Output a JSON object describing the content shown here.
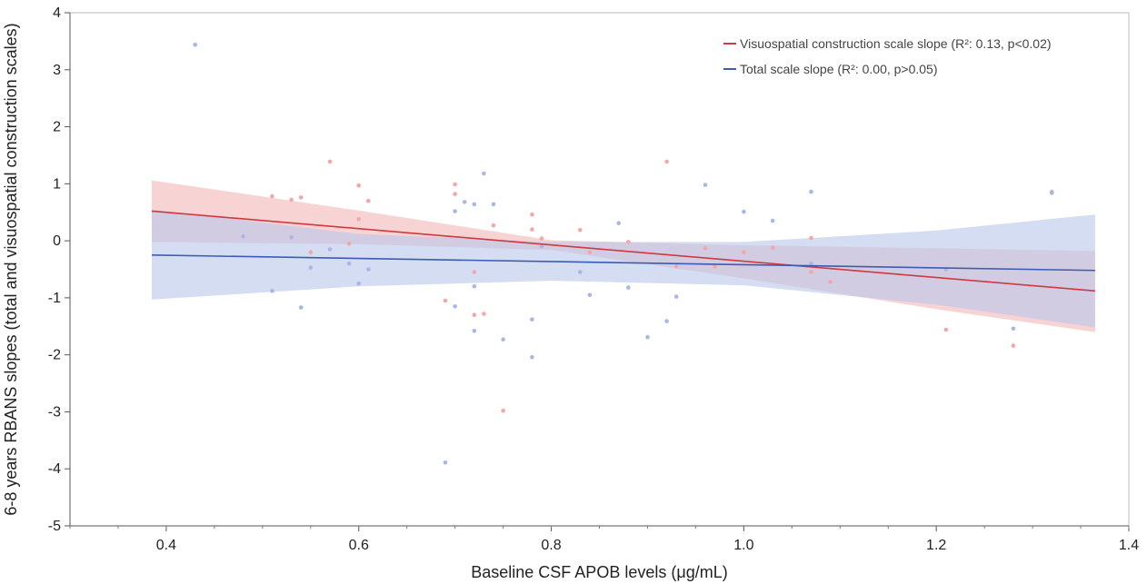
{
  "chart_data": {
    "type": "scatter",
    "xlabel": "Baseline CSF APOB levels (μg/mL)",
    "ylabel": "6-8 years RBANS slopes (total and visuospatial construction scales)",
    "xlim": [
      0.3,
      1.4
    ],
    "ylim": [
      -5,
      4
    ],
    "xticks": [
      0.4,
      0.6,
      0.8,
      1.0,
      1.2,
      1.4
    ],
    "xtick_labels": [
      "0.4",
      "0.6",
      "0.8",
      "1.0",
      "1.2",
      "1.4"
    ],
    "yticks": [
      -5,
      -4,
      -3,
      -2,
      -1,
      0,
      1,
      2,
      3,
      4
    ],
    "ytick_labels": [
      "-5",
      "-4",
      "-3",
      "-2",
      "-1",
      "0",
      "1",
      "2",
      "3",
      "4"
    ],
    "grid": false,
    "legend_position": "top-right",
    "series": [
      {
        "name": "Visuospatial construction scale slope (R²: 0.13, p<0.02)",
        "color": "#d0393f",
        "band_color": "#f4b8b8",
        "line": {
          "x": [
            0.385,
            1.365
          ],
          "y": [
            0.52,
            -0.88
          ]
        },
        "band": {
          "x": [
            0.385,
            0.6,
            0.8,
            1.0,
            1.2,
            1.365
          ],
          "upper": [
            1.06,
            0.53,
            0.01,
            -0.08,
            -0.13,
            -0.18
          ],
          "lower": [
            -0.02,
            -0.06,
            -0.16,
            -0.66,
            -1.2,
            -1.6
          ]
        },
        "points": [
          [
            0.43,
            3.44
          ],
          [
            0.51,
            0.78
          ],
          [
            0.53,
            0.72
          ],
          [
            0.54,
            0.76
          ],
          [
            0.57,
            1.39
          ],
          [
            0.6,
            0.97
          ],
          [
            0.61,
            0.7
          ],
          [
            0.6,
            0.38
          ],
          [
            0.59,
            -0.05
          ],
          [
            0.55,
            -0.2
          ],
          [
            0.69,
            -1.05
          ],
          [
            0.7,
            0.99
          ],
          [
            0.7,
            0.82
          ],
          [
            0.72,
            -0.55
          ],
          [
            0.72,
            -1.3
          ],
          [
            0.73,
            -1.28
          ],
          [
            0.74,
            0.27
          ],
          [
            0.75,
            -2.98
          ],
          [
            0.78,
            0.46
          ],
          [
            0.78,
            0.2
          ],
          [
            0.79,
            0.04
          ],
          [
            0.83,
            0.19
          ],
          [
            0.84,
            -0.2
          ],
          [
            0.88,
            -0.02
          ],
          [
            0.92,
            1.39
          ],
          [
            0.93,
            -0.45
          ],
          [
            0.96,
            -0.13
          ],
          [
            0.97,
            -0.45
          ],
          [
            1.0,
            -0.2
          ],
          [
            1.03,
            -0.12
          ],
          [
            1.07,
            0.05
          ],
          [
            1.07,
            -0.55
          ],
          [
            1.09,
            -0.72
          ],
          [
            1.21,
            -1.56
          ],
          [
            1.28,
            -1.84
          ],
          [
            1.32,
            0.86
          ]
        ]
      },
      {
        "name": "Total scale slope (R²: 0.00, p>0.05)",
        "color": "#3a5cb5",
        "band_color": "#b9c8ea",
        "line": {
          "x": [
            0.385,
            1.365
          ],
          "y": [
            -0.25,
            -0.52
          ]
        },
        "band": {
          "x": [
            0.385,
            0.6,
            0.8,
            1.0,
            1.2,
            1.365
          ],
          "upper": [
            0.55,
            0.12,
            -0.02,
            -0.02,
            0.18,
            0.46
          ],
          "lower": [
            -1.03,
            -0.8,
            -0.7,
            -0.78,
            -1.12,
            -1.52
          ]
        },
        "points": [
          [
            0.43,
            3.44
          ],
          [
            0.48,
            0.08
          ],
          [
            0.51,
            -0.88
          ],
          [
            0.53,
            0.06
          ],
          [
            0.54,
            -1.17
          ],
          [
            0.55,
            -0.47
          ],
          [
            0.57,
            -0.15
          ],
          [
            0.59,
            -0.4
          ],
          [
            0.6,
            -0.75
          ],
          [
            0.61,
            -0.5
          ],
          [
            0.69,
            -3.89
          ],
          [
            0.7,
            0.52
          ],
          [
            0.7,
            -1.15
          ],
          [
            0.71,
            0.68
          ],
          [
            0.72,
            0.64
          ],
          [
            0.72,
            -0.8
          ],
          [
            0.72,
            -1.58
          ],
          [
            0.73,
            1.18
          ],
          [
            0.74,
            0.64
          ],
          [
            0.75,
            -1.73
          ],
          [
            0.78,
            -1.38
          ],
          [
            0.78,
            -2.04
          ],
          [
            0.79,
            -0.1
          ],
          [
            0.83,
            -0.55
          ],
          [
            0.84,
            -0.95
          ],
          [
            0.87,
            0.31
          ],
          [
            0.88,
            -0.82
          ],
          [
            0.9,
            -1.69
          ],
          [
            0.92,
            -1.41
          ],
          [
            0.93,
            -0.98
          ],
          [
            0.96,
            0.98
          ],
          [
            1.0,
            0.51
          ],
          [
            1.03,
            0.35
          ],
          [
            1.07,
            0.86
          ],
          [
            1.07,
            -0.4
          ],
          [
            1.21,
            -0.5
          ],
          [
            1.28,
            -1.54
          ],
          [
            1.32,
            0.84
          ]
        ]
      }
    ]
  }
}
